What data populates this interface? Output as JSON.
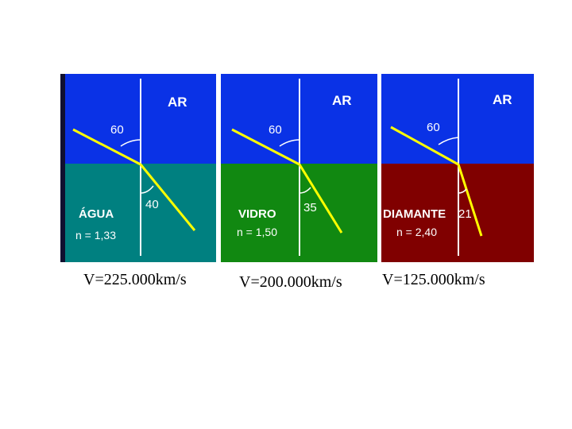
{
  "panels": [
    {
      "top_label": "AR",
      "incidence_angle": "60",
      "refraction_angle": "40",
      "material": "ÁGUA",
      "index": "n = 1,33",
      "speed": "V=225.000km/s",
      "colors": {
        "top": "#0a32e6",
        "bottom": "#008080",
        "ray": "#ffff00"
      }
    },
    {
      "top_label": "AR",
      "incidence_angle": "60",
      "refraction_angle": "35",
      "material": "VIDRO",
      "index": "n = 1,50",
      "speed": "V=200.000km/s",
      "colors": {
        "top": "#0a32e6",
        "bottom": "#118811",
        "ray": "#ffff00"
      }
    },
    {
      "top_label": "AR",
      "incidence_angle": "60",
      "refraction_angle": "21",
      "material": "DIAMANTE",
      "index": "n = 2,40",
      "speed": "V=125.000km/s",
      "colors": {
        "top": "#0a32e6",
        "bottom": "#800000",
        "ray": "#ffff00"
      }
    }
  ]
}
